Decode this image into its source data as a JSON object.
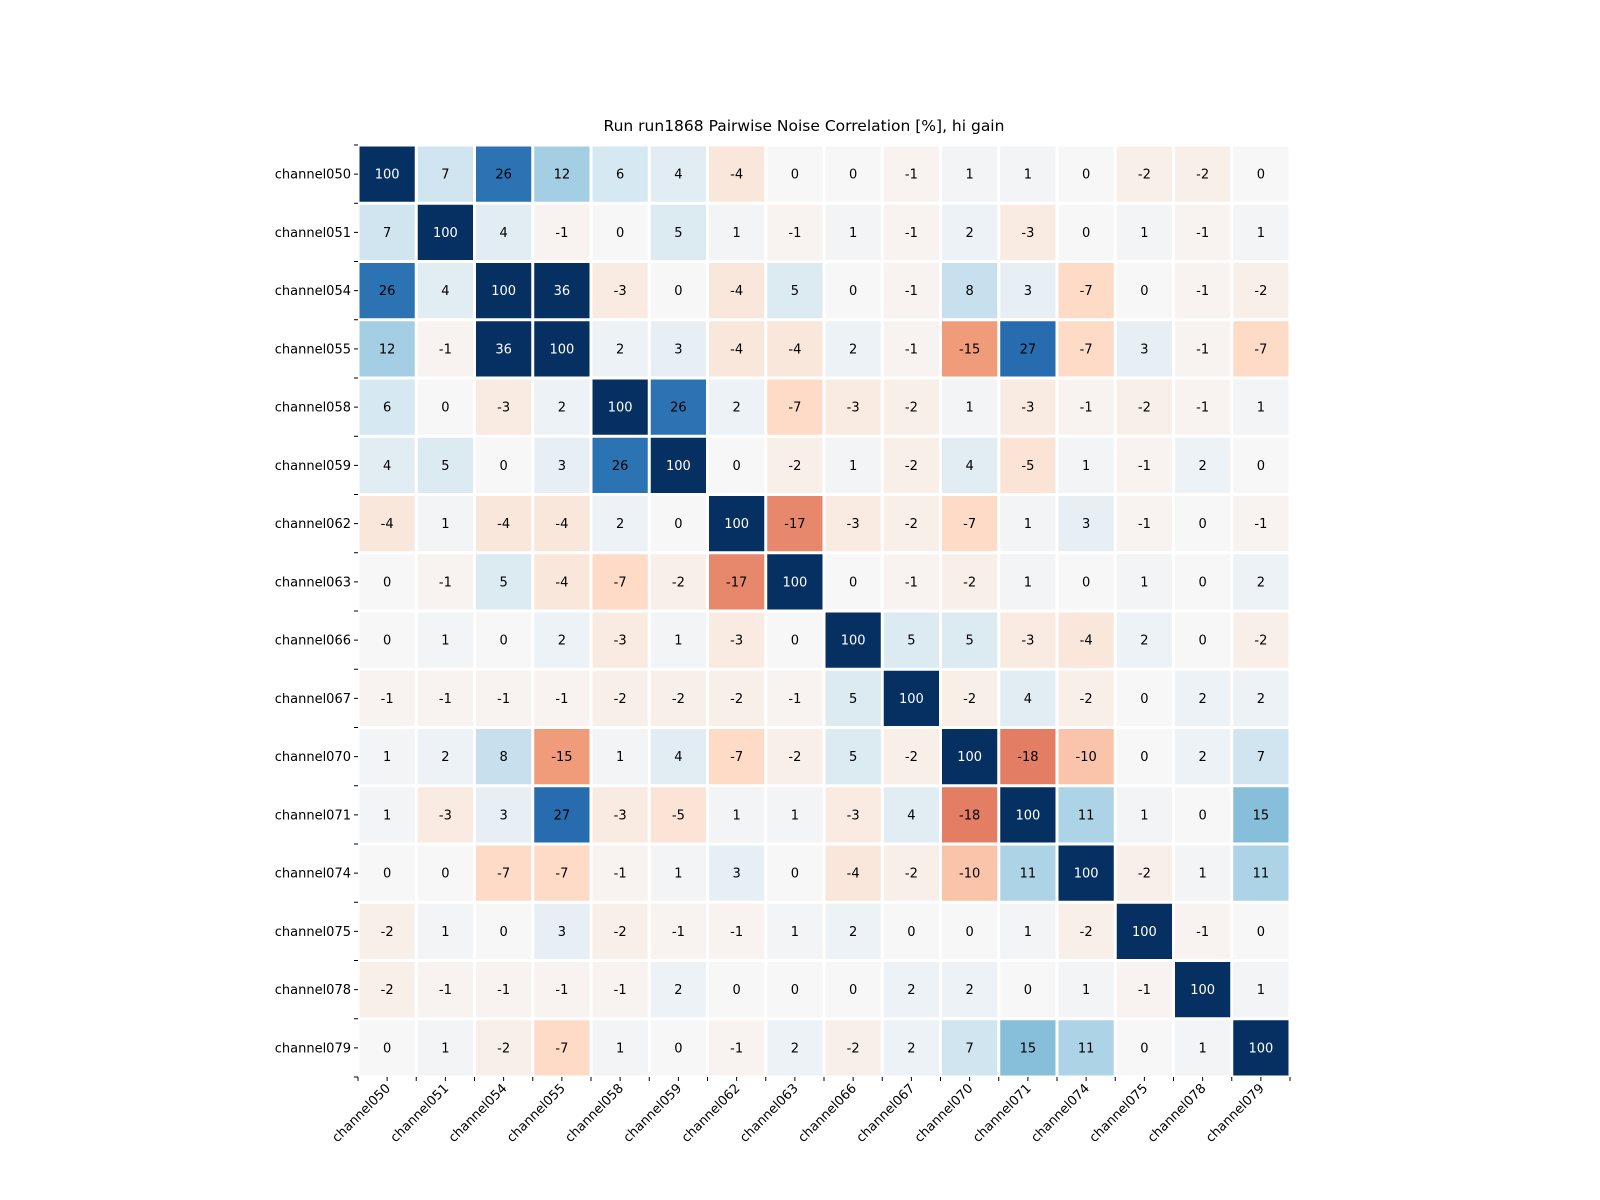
{
  "chart_data": {
    "type": "heatmap",
    "title": "Run run1868 Pairwise Noise Correlation [%], hi gain",
    "xlabel": "",
    "ylabel": "",
    "colormap": "RdBu",
    "vmin": -35,
    "vmax": 35,
    "colorbar": false,
    "categories": [
      "channel050",
      "channel051",
      "channel054",
      "channel055",
      "channel058",
      "channel059",
      "channel062",
      "channel063",
      "channel066",
      "channel067",
      "channel070",
      "channel071",
      "channel074",
      "channel075",
      "channel078",
      "channel079"
    ],
    "values": [
      [
        100,
        7,
        26,
        12,
        6,
        4,
        -4,
        0,
        0,
        -1,
        1,
        1,
        0,
        -2,
        -2,
        0
      ],
      [
        7,
        100,
        4,
        -1,
        0,
        5,
        1,
        -1,
        1,
        -1,
        2,
        -3,
        0,
        1,
        -1,
        1
      ],
      [
        26,
        4,
        100,
        36,
        -3,
        0,
        -4,
        5,
        0,
        -1,
        8,
        3,
        -7,
        0,
        -1,
        -2
      ],
      [
        12,
        -1,
        36,
        100,
        2,
        3,
        -4,
        -4,
        2,
        -1,
        -15,
        27,
        -7,
        3,
        -1,
        -7
      ],
      [
        6,
        0,
        -3,
        2,
        100,
        26,
        2,
        -7,
        -3,
        -2,
        1,
        -3,
        -1,
        -2,
        -1,
        1
      ],
      [
        4,
        5,
        0,
        3,
        26,
        100,
        0,
        -2,
        1,
        -2,
        4,
        -5,
        1,
        -1,
        2,
        0
      ],
      [
        -4,
        1,
        -4,
        -4,
        2,
        0,
        100,
        -17,
        -3,
        -2,
        -7,
        1,
        3,
        -1,
        0,
        -1
      ],
      [
        0,
        -1,
        5,
        -4,
        -7,
        -2,
        -17,
        100,
        0,
        -1,
        -2,
        1,
        0,
        1,
        0,
        2
      ],
      [
        0,
        1,
        0,
        2,
        -3,
        1,
        -3,
        0,
        100,
        5,
        5,
        -3,
        -4,
        2,
        0,
        -2
      ],
      [
        -1,
        -1,
        -1,
        -1,
        -2,
        -2,
        -2,
        -1,
        5,
        100,
        -2,
        4,
        -2,
        0,
        2,
        2
      ],
      [
        1,
        2,
        8,
        -15,
        1,
        4,
        -7,
        -2,
        5,
        -2,
        100,
        -18,
        -10,
        0,
        2,
        7
      ],
      [
        1,
        -3,
        3,
        27,
        -3,
        -5,
        1,
        1,
        -3,
        4,
        -18,
        100,
        11,
        1,
        0,
        15
      ],
      [
        0,
        0,
        -7,
        -7,
        -1,
        1,
        3,
        0,
        -4,
        -2,
        -10,
        11,
        100,
        -2,
        1,
        11
      ],
      [
        -2,
        1,
        0,
        3,
        -2,
        -1,
        -1,
        1,
        2,
        0,
        0,
        1,
        -2,
        100,
        -1,
        0
      ],
      [
        -2,
        -1,
        -1,
        -1,
        -1,
        2,
        0,
        0,
        0,
        2,
        2,
        0,
        1,
        -1,
        100,
        1
      ],
      [
        0,
        1,
        -2,
        -7,
        1,
        0,
        -1,
        2,
        -2,
        2,
        7,
        15,
        11,
        0,
        1,
        100
      ]
    ]
  }
}
